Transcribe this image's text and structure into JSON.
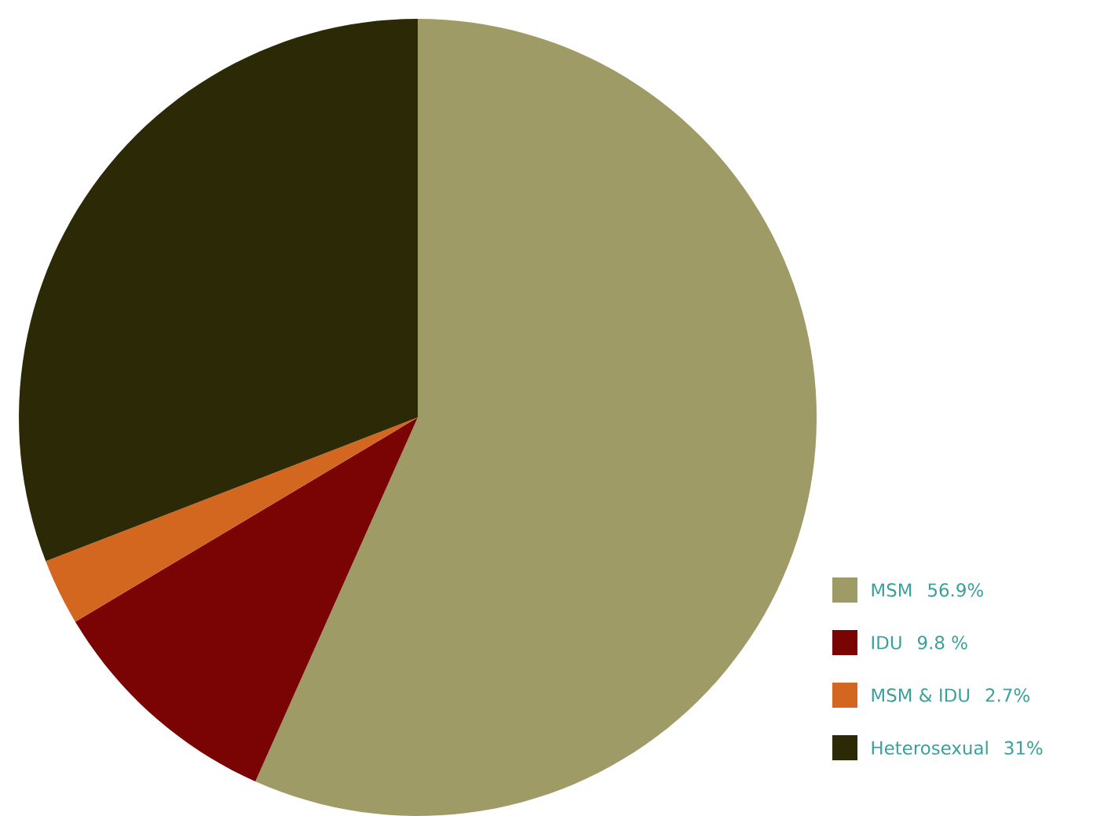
{
  "chart_data": {
    "type": "pie",
    "categories": [
      "MSM",
      "IDU",
      "MSM & IDU",
      "Heterosexual"
    ],
    "values": [
      56.9,
      9.8,
      2.7,
      31
    ],
    "value_labels": [
      "56.9%",
      "9.8 %",
      "2.7%",
      "31%"
    ],
    "colors": [
      "#9e9b66",
      "#7a0303",
      "#d4671f",
      "#2c2a06"
    ],
    "legend": "bottom right"
  }
}
